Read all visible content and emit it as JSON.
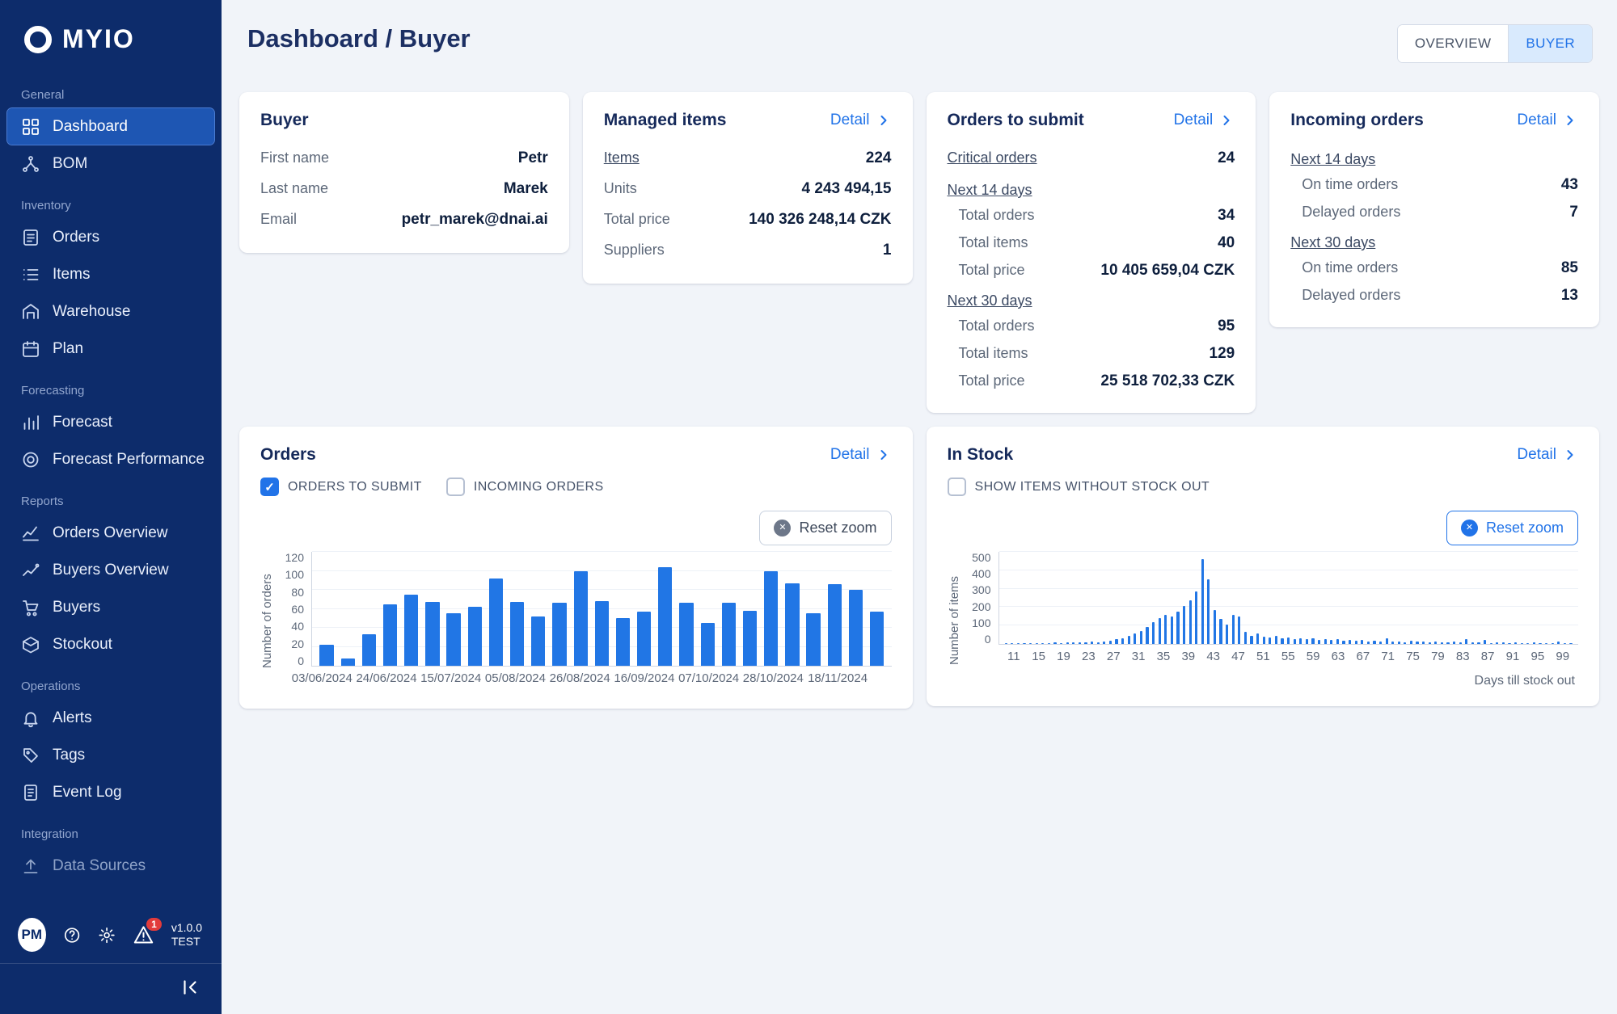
{
  "app": {
    "logo_text": "MYIO"
  },
  "colors": {
    "accent_blue": "#2173e8",
    "bar_blue": "#2176e5",
    "sidebar_bg": "#0d2c6b",
    "active_item_bg": "#1e56b3",
    "main_bg": "#f1f4f9",
    "selected_toggle_bg": "#d9eafd",
    "badge_red": "#e23b3b"
  },
  "sidebar": {
    "sections": [
      {
        "label": "General",
        "items": [
          {
            "label": "Dashboard",
            "icon": "dashboard-icon",
            "state": "active"
          },
          {
            "label": "BOM",
            "icon": "bom-icon",
            "state": "normal"
          }
        ]
      },
      {
        "label": "Inventory",
        "items": [
          {
            "label": "Orders",
            "icon": "orders-icon",
            "state": "normal"
          },
          {
            "label": "Items",
            "icon": "items-icon",
            "state": "normal"
          },
          {
            "label": "Warehouse",
            "icon": "warehouse-icon",
            "state": "normal"
          },
          {
            "label": "Plan",
            "icon": "plan-icon",
            "state": "normal"
          }
        ]
      },
      {
        "label": "Forecasting",
        "items": [
          {
            "label": "Forecast",
            "icon": "forecast-icon",
            "state": "normal"
          },
          {
            "label": "Forecast Performance",
            "icon": "forecast-performance-icon",
            "state": "normal"
          }
        ]
      },
      {
        "label": "Reports",
        "items": [
          {
            "label": "Orders Overview",
            "icon": "orders-overview-icon",
            "state": "normal"
          },
          {
            "label": "Buyers Overview",
            "icon": "buyers-overview-icon",
            "state": "normal"
          },
          {
            "label": "Buyers",
            "icon": "buyers-icon",
            "state": "normal"
          },
          {
            "label": "Stockout",
            "icon": "stockout-icon",
            "state": "normal"
          }
        ]
      },
      {
        "label": "Operations",
        "items": [
          {
            "label": "Alerts",
            "icon": "alerts-icon",
            "state": "normal"
          },
          {
            "label": "Tags",
            "icon": "tags-icon",
            "state": "normal"
          },
          {
            "label": "Event Log",
            "icon": "event-log-icon",
            "state": "normal"
          }
        ]
      },
      {
        "label": "Integration",
        "items": [
          {
            "label": "Data Sources",
            "icon": "data-sources-icon",
            "state": "disabled"
          }
        ]
      }
    ],
    "footer": {
      "avatar_initials": "PM",
      "alert_badge": "1",
      "version_top": "v1.0.0",
      "version_bottom": "TEST"
    }
  },
  "header": {
    "title": "Dashboard / Buyer",
    "toggle": {
      "overview": "OVERVIEW",
      "buyer": "BUYER",
      "selected": "BUYER"
    }
  },
  "cards": {
    "buyer": {
      "title": "Buyer",
      "rows": [
        {
          "label": "First name",
          "value": "Petr"
        },
        {
          "label": "Last name",
          "value": "Marek"
        },
        {
          "label": "Email",
          "value": "petr_marek@dnai.ai"
        }
      ]
    },
    "managed_items": {
      "title": "Managed items",
      "detail_label": "Detail",
      "rows": [
        {
          "label": "Items",
          "value": "224",
          "link": true
        },
        {
          "label": "Units",
          "value": "4 243 494,15"
        },
        {
          "label": "Total price",
          "value": "140 326 248,14 CZK"
        },
        {
          "label": "Suppliers",
          "value": "1"
        }
      ]
    },
    "orders_to_submit": {
      "title": "Orders to submit",
      "detail_label": "Detail",
      "critical_label": "Critical orders",
      "critical_value": "24",
      "groups": [
        {
          "label": "Next 14 days",
          "rows": [
            {
              "label": "Total orders",
              "value": "34"
            },
            {
              "label": "Total items",
              "value": "40"
            },
            {
              "label": "Total price",
              "value": "10 405 659,04 CZK"
            }
          ]
        },
        {
          "label": "Next 30 days",
          "rows": [
            {
              "label": "Total orders",
              "value": "95"
            },
            {
              "label": "Total items",
              "value": "129"
            },
            {
              "label": "Total price",
              "value": "25 518 702,33 CZK"
            }
          ]
        }
      ]
    },
    "incoming_orders": {
      "title": "Incoming orders",
      "detail_label": "Detail",
      "groups": [
        {
          "label": "Next 14 days",
          "rows": [
            {
              "label": "On time orders",
              "value": "43"
            },
            {
              "label": "Delayed orders",
              "value": "7"
            }
          ]
        },
        {
          "label": "Next 30 days",
          "rows": [
            {
              "label": "On time orders",
              "value": "85"
            },
            {
              "label": "Delayed orders",
              "value": "13"
            }
          ]
        }
      ]
    },
    "orders_chart": {
      "title": "Orders",
      "detail_label": "Detail",
      "checkboxes": [
        {
          "label": "ORDERS TO SUBMIT",
          "checked": true
        },
        {
          "label": "INCOMING ORDERS",
          "checked": false
        }
      ],
      "reset_zoom_label": "Reset zoom"
    },
    "in_stock": {
      "title": "In Stock",
      "detail_label": "Detail",
      "checkboxes": [
        {
          "label": "SHOW ITEMS WITHOUT STOCK OUT",
          "checked": false
        }
      ],
      "reset_zoom_label": "Reset zoom"
    }
  },
  "chart_data": [
    {
      "type": "bar",
      "title": "Orders",
      "ylabel": "Number of orders",
      "xlabel": "",
      "ylim": [
        0,
        120
      ],
      "yticks": [
        0,
        20,
        40,
        60,
        80,
        100,
        120
      ],
      "x_tick_labels": [
        "03/06/2024",
        "24/06/2024",
        "15/07/2024",
        "05/08/2024",
        "26/08/2024",
        "16/09/2024",
        "07/10/2024",
        "28/10/2024",
        "18/11/2024"
      ],
      "x_tick_every": 3,
      "values": [
        22,
        8,
        33,
        65,
        75,
        67,
        55,
        62,
        92,
        67,
        52,
        66,
        100,
        68,
        50,
        57,
        104,
        66,
        45,
        66,
        58,
        100,
        87,
        55,
        86,
        80,
        57
      ],
      "legend": [
        "ORDERS TO SUBMIT"
      ],
      "grid": true,
      "bar_color": "#2176e5"
    },
    {
      "type": "bar",
      "title": "In Stock",
      "ylabel": "Number of items",
      "xlabel": "Days till stock out",
      "ylim": [
        0,
        500
      ],
      "yticks": [
        0,
        100,
        200,
        300,
        400,
        500
      ],
      "x_start": 9,
      "x_tick_labels": [
        "11",
        "15",
        "19",
        "23",
        "27",
        "31",
        "35",
        "39",
        "43",
        "47",
        "51",
        "55",
        "59",
        "63",
        "67",
        "71",
        "75",
        "79",
        "83",
        "87",
        "91",
        "95",
        "99"
      ],
      "values": [
        5,
        3,
        4,
        3,
        5,
        4,
        6,
        5,
        8,
        6,
        8,
        7,
        10,
        8,
        12,
        10,
        15,
        18,
        25,
        30,
        45,
        55,
        70,
        90,
        120,
        140,
        160,
        150,
        175,
        205,
        235,
        285,
        460,
        350,
        185,
        135,
        105,
        160,
        150,
        65,
        45,
        55,
        40,
        35,
        45,
        30,
        35,
        28,
        32,
        25,
        30,
        22,
        28,
        20,
        25,
        18,
        22,
        16,
        20,
        15,
        18,
        14,
        30,
        12,
        15,
        10,
        18,
        12,
        14,
        10,
        12,
        8,
        10,
        12,
        8,
        25,
        10,
        8,
        20,
        6,
        8,
        10,
        6,
        8,
        5,
        6,
        8,
        5,
        6,
        4,
        15,
        5,
        6
      ],
      "grid": true,
      "bar_color": "#2176e5"
    }
  ]
}
